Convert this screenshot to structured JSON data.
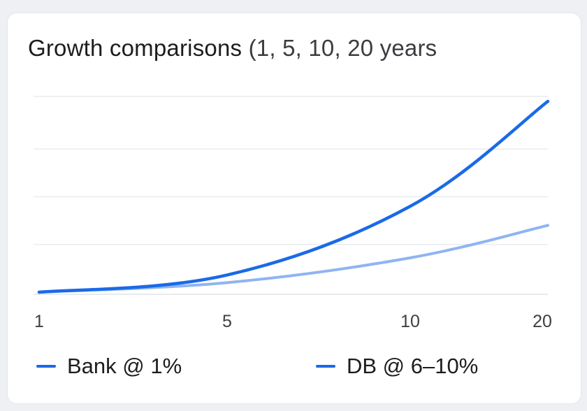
{
  "chart_data": {
    "type": "line",
    "title": "Growth comparisons",
    "subtitle": "(1, 5, 10, 20 years",
    "x": [
      1,
      5,
      10,
      20
    ],
    "x_tick_labels": [
      "1",
      "5",
      "10",
      "20"
    ],
    "ylim": [
      0,
      1
    ],
    "y_gridlines": [
      0.25,
      0.5,
      0.75,
      1.0
    ],
    "grid": true,
    "legend_placement": "bottom",
    "series": [
      {
        "name": "Bank @ 1%",
        "color": "#8fb4f2",
        "values": [
          0.0,
          0.05,
          0.18,
          0.35
        ]
      },
      {
        "name": "DB @ 6–10%",
        "color": "#1a6ae6",
        "values": [
          0.0,
          0.09,
          0.45,
          1.0
        ]
      }
    ]
  },
  "colors": {
    "card_background": "#ffffff",
    "gridline": "#e8ecf1",
    "baseline": "#dfe3e8",
    "bank_line": "#8fb4f2",
    "db_line": "#1a6ae6"
  }
}
